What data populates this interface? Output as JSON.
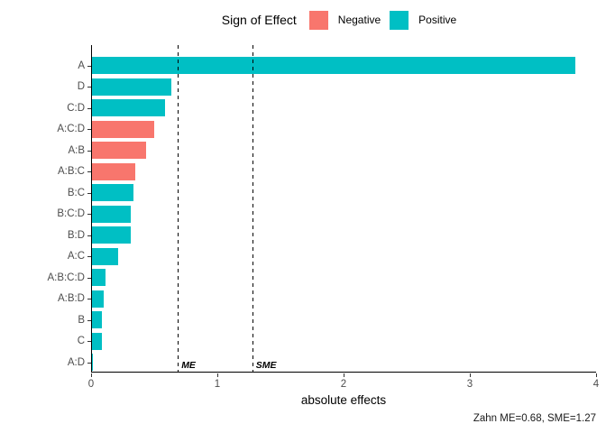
{
  "legend": {
    "title": "Sign of Effect",
    "items": [
      {
        "label": "Negative",
        "color": "#F8766D"
      },
      {
        "label": "Positive",
        "color": "#00BFC4"
      }
    ]
  },
  "chart_data": {
    "type": "bar",
    "orientation": "horizontal",
    "title": "",
    "xlabel": "absolute effects",
    "ylabel": "",
    "xlim": [
      0,
      4
    ],
    "xticks": [
      0,
      1,
      2,
      3,
      4
    ],
    "xtick_labels": [
      "0",
      "1",
      "2",
      "3",
      "4"
    ],
    "grid": false,
    "legend_position": "top",
    "categories": [
      "A",
      "D",
      "C:D",
      "A:C:D",
      "A:B",
      "A:B:C",
      "B:C",
      "B:C:D",
      "B:D",
      "A:C",
      "A:B:C:D",
      "A:B:D",
      "B",
      "C",
      "A:D"
    ],
    "values": [
      3.83,
      0.63,
      0.58,
      0.49,
      0.43,
      0.34,
      0.33,
      0.31,
      0.31,
      0.21,
      0.11,
      0.09,
      0.08,
      0.08,
      0.01
    ],
    "signs": [
      "Positive",
      "Positive",
      "Positive",
      "Negative",
      "Negative",
      "Negative",
      "Positive",
      "Positive",
      "Positive",
      "Positive",
      "Positive",
      "Positive",
      "Positive",
      "Positive",
      "Positive"
    ],
    "sign_colors": {
      "Negative": "#F8766D",
      "Positive": "#00BFC4"
    },
    "reference_lines": [
      {
        "label": "ME",
        "value": 0.68
      },
      {
        "label": "SME",
        "value": 1.27
      }
    ]
  },
  "caption": "Zahn ME=0.68, SME=1.27"
}
